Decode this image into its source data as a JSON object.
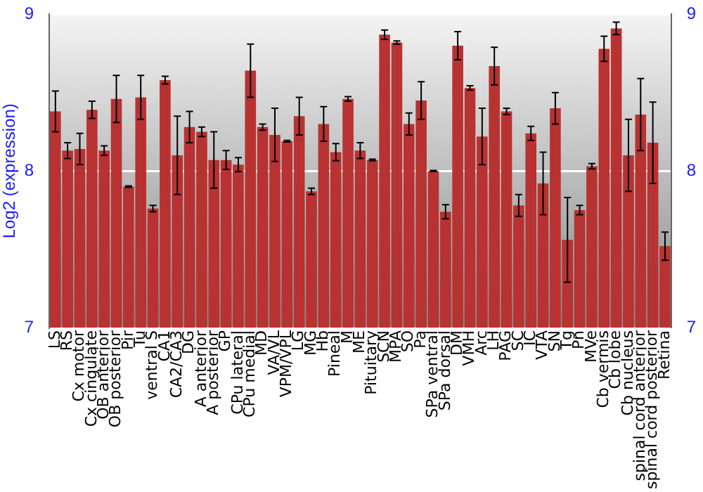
{
  "chart_data": {
    "type": "bar",
    "ylabel": "Log2 (expression)",
    "categories": [
      "LS",
      "RS",
      "Cx motor",
      "Cx cingulate",
      "OB anterior",
      "OB posterior",
      "Pir",
      "Tu",
      "ventral S",
      "CA1",
      "CA2/CA3",
      "DG",
      "A anterior",
      "A posterior",
      "GP",
      "CPu lateral",
      "CPu medial",
      "MD",
      "VA/VL",
      "VPM/VPL",
      "LG",
      "MG",
      "Hb",
      "Pineal",
      "M",
      "ME",
      "Pituitary",
      "SCN",
      "MPA",
      "SO",
      "Pa",
      "SPa ventral",
      "SPa dorsal",
      "DM",
      "VMH",
      "Arc",
      "LH",
      "PAG",
      "SC",
      "IC",
      "VTA",
      "SN",
      "Tg",
      "Pn",
      "MVe",
      "Cb vermis",
      "Cb lobe",
      "Cb nucleus",
      "spinal cord anterior",
      "spinal cord posterior",
      "Retina"
    ],
    "values": [
      8.38,
      8.13,
      8.14,
      8.39,
      8.13,
      8.46,
      7.9,
      8.47,
      7.76,
      8.58,
      8.1,
      8.28,
      8.25,
      8.07,
      8.07,
      8.04,
      8.64,
      8.28,
      8.23,
      8.19,
      8.35,
      7.87,
      8.3,
      8.12,
      8.46,
      8.13,
      8.07,
      8.87,
      8.82,
      8.3,
      8.45,
      8.0,
      7.74,
      8.8,
      8.53,
      8.22,
      8.67,
      8.38,
      7.78,
      8.24,
      7.92,
      8.4,
      7.56,
      7.75,
      8.03,
      8.78,
      8.91,
      8.1,
      8.36,
      8.18,
      7.52
    ],
    "errors": [
      0.13,
      0.05,
      0.1,
      0.055,
      0.03,
      0.15,
      0.005,
      0.14,
      0.02,
      0.025,
      0.25,
      0.1,
      0.03,
      0.18,
      0.06,
      0.045,
      0.17,
      0.02,
      0.17,
      0.005,
      0.12,
      0.02,
      0.11,
      0.055,
      0.015,
      0.05,
      0.005,
      0.03,
      0.01,
      0.07,
      0.12,
      0.003,
      0.045,
      0.09,
      0.014,
      0.18,
      0.12,
      0.02,
      0.07,
      0.045,
      0.2,
      0.1,
      0.27,
      0.03,
      0.017,
      0.08,
      0.04,
      0.23,
      0.23,
      0.26,
      0.09
    ],
    "color": "#b83232",
    "ylim": [
      7,
      9
    ],
    "yticks": [
      7,
      8,
      9
    ],
    "y2lim": [
      7,
      9
    ],
    "y2ticks": [
      7,
      8,
      9
    ],
    "grid": "y",
    "legend": false
  }
}
